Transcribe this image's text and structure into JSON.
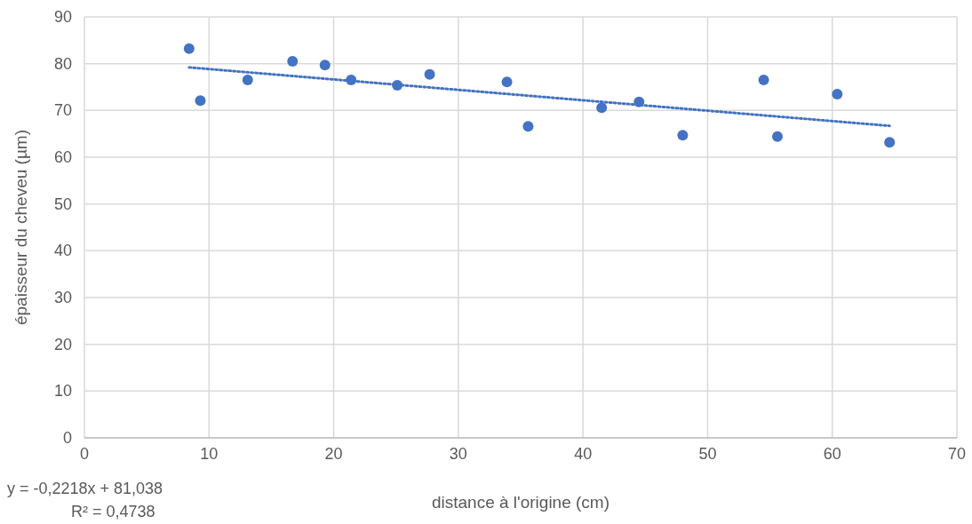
{
  "chart_data": {
    "type": "scatter",
    "xlabel": "distance à l'origine (cm)",
    "ylabel": "épaisseur du cheveu (µm)",
    "xlim": [
      0,
      70
    ],
    "xticks": [
      0,
      10,
      20,
      30,
      40,
      50,
      60,
      70
    ],
    "ylim": [
      0,
      90
    ],
    "yticks": [
      0,
      10,
      20,
      30,
      40,
      50,
      60,
      70,
      80,
      90
    ],
    "grid": true,
    "series": [
      {
        "type": "scatter",
        "color": "#4472c4",
        "marker": "circle",
        "x": [
          8.4,
          9.3,
          13.1,
          16.7,
          19.3,
          21.4,
          25.1,
          27.7,
          33.9,
          35.6,
          41.5,
          44.5,
          48.0,
          54.5,
          55.6,
          60.4,
          64.6
        ],
        "values": [
          83.2,
          72.1,
          76.5,
          80.5,
          79.7,
          76.5,
          75.4,
          77.7,
          76.1,
          66.6,
          70.6,
          71.8,
          64.7,
          76.5,
          64.4,
          73.5,
          63.2
        ]
      },
      {
        "type": "line",
        "color": "#4472c4",
        "marker": "none",
        "line_style": "dotted",
        "x": [
          8.4,
          64.6
        ],
        "values": [
          79.2,
          66.7
        ]
      }
    ],
    "annotations": [
      "y = -0,2218x + 81,038",
      "R² = 0,4738"
    ]
  }
}
